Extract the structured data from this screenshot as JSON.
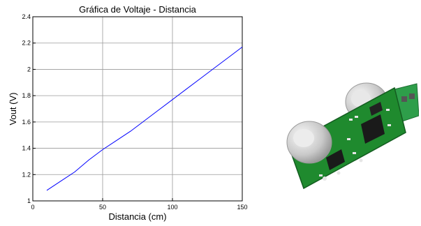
{
  "chart_data": {
    "type": "line",
    "title": "Gráfica de Voltaje - Distancia",
    "xlabel": "Distancia (cm)",
    "ylabel": "Vout (V)",
    "xlim": [
      0,
      150
    ],
    "ylim": [
      1,
      2.4
    ],
    "xticks": [
      "0",
      "50",
      "100",
      "150"
    ],
    "yticks": [
      "1",
      "1.2",
      "1.4",
      "1.6",
      "1.8",
      "2",
      "2.2",
      "2.4"
    ],
    "grid": true,
    "line_color": "#0000ff",
    "series": [
      {
        "x": [
          10,
          20,
          30,
          40,
          50,
          60,
          70,
          80,
          90,
          100,
          110,
          120,
          130,
          140,
          150
        ],
        "values": [
          1.08,
          1.15,
          1.22,
          1.31,
          1.39,
          1.46,
          1.53,
          1.61,
          1.69,
          1.77,
          1.85,
          1.93,
          2.01,
          2.09,
          2.17
        ]
      }
    ]
  },
  "photo": {
    "icon": "ultrasonic-sensor-module",
    "board_color": "#1f8a2e",
    "terminal_color": "#2e9e4a"
  }
}
